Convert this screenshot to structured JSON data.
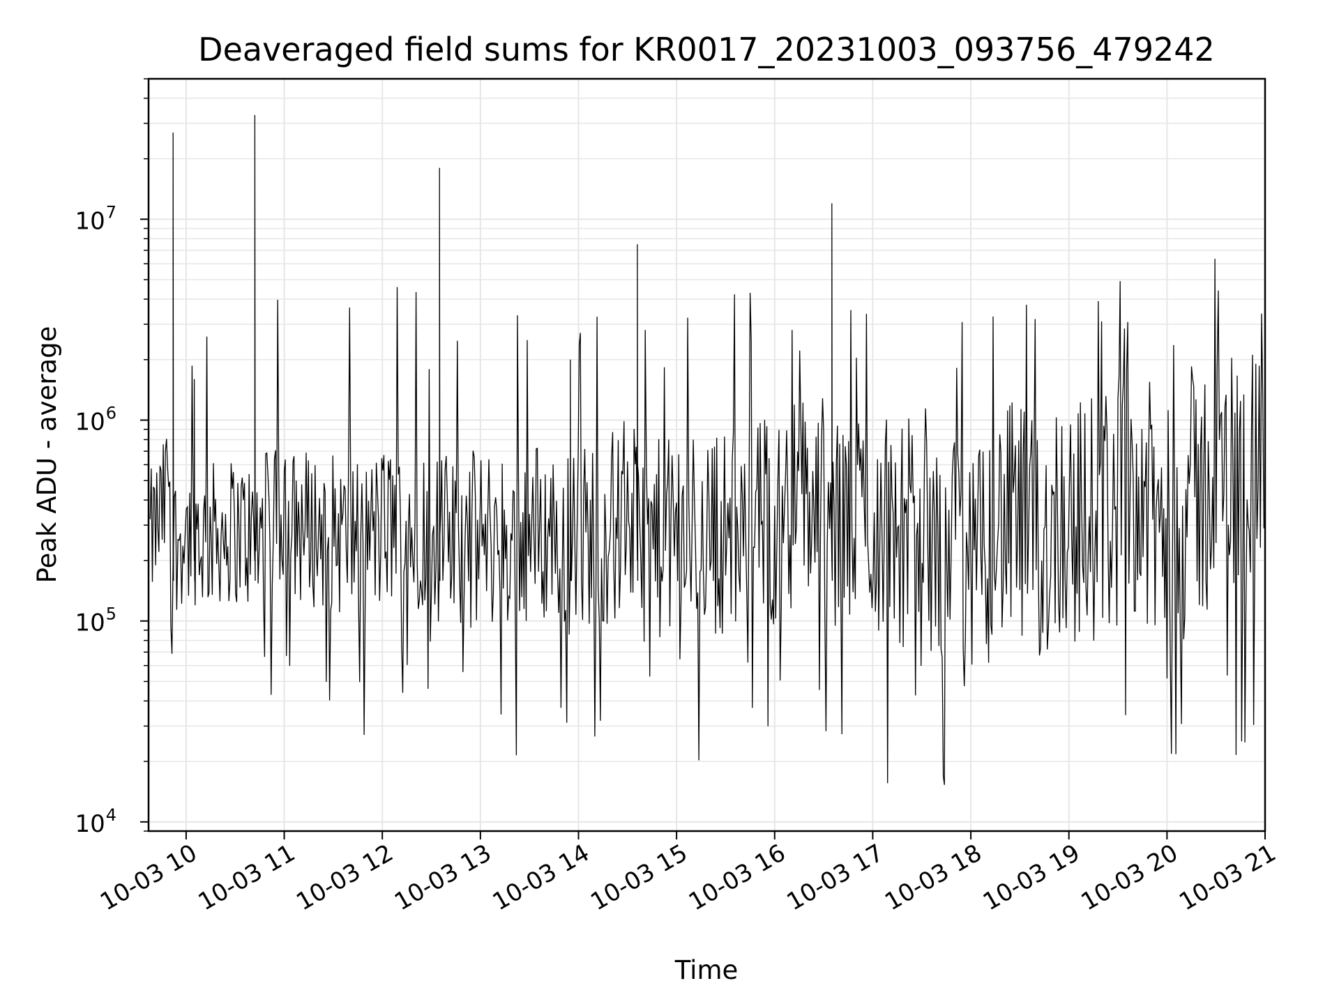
{
  "chart_data": {
    "type": "line",
    "title": "Deaveraged field sums for KR0017_20231003_093756_479242",
    "xlabel": "Time",
    "ylabel": "Peak ADU - average",
    "x_range": [
      "2023-10-03 09:37",
      "2023-10-03 21:00"
    ],
    "y_scale": "log",
    "y_range": [
      9000,
      50000000
    ],
    "grid": true,
    "grid_minor_y": true,
    "line_color": "#000000",
    "x_ticks": [
      {
        "value": "2023-10-03 10:00",
        "label": "10-03 10"
      },
      {
        "value": "2023-10-03 11:00",
        "label": "10-03 11"
      },
      {
        "value": "2023-10-03 12:00",
        "label": "10-03 12"
      },
      {
        "value": "2023-10-03 13:00",
        "label": "10-03 13"
      },
      {
        "value": "2023-10-03 14:00",
        "label": "10-03 14"
      },
      {
        "value": "2023-10-03 15:00",
        "label": "10-03 15"
      },
      {
        "value": "2023-10-03 16:00",
        "label": "10-03 16"
      },
      {
        "value": "2023-10-03 17:00",
        "label": "10-03 17"
      },
      {
        "value": "2023-10-03 18:00",
        "label": "10-03 18"
      },
      {
        "value": "2023-10-03 19:00",
        "label": "10-03 19"
      },
      {
        "value": "2023-10-03 20:00",
        "label": "10-03 20"
      },
      {
        "value": "2023-10-03 21:00",
        "label": "10-03 21"
      }
    ],
    "y_ticks": [
      {
        "value": 10000,
        "base": "10",
        "exp": "4"
      },
      {
        "value": 100000,
        "base": "10",
        "exp": "5"
      },
      {
        "value": 1000000,
        "base": "10",
        "exp": "6"
      },
      {
        "value": 10000000,
        "base": "10",
        "exp": "7"
      }
    ],
    "series": [
      {
        "type": "line",
        "color": "#000000",
        "x": [
          "2023-10-03 09:38",
          "2023-10-03 09:42",
          "2023-10-03 09:46",
          "2023-10-03 09:50",
          "2023-10-03 09:52",
          "2023-10-03 09:55",
          "2023-10-03 09:58",
          "2023-10-03 10:05",
          "2023-10-03 10:06",
          "2023-10-03 10:10",
          "2023-10-03 10:20",
          "2023-10-03 10:35",
          "2023-10-03 10:42",
          "2023-10-03 10:50",
          "2023-10-03 11:00",
          "2023-10-03 11:10",
          "2023-10-03 11:25",
          "2023-10-03 11:40",
          "2023-10-03 11:55",
          "2023-10-03 12:05",
          "2023-10-03 12:20",
          "2023-10-03 12:30",
          "2023-10-03 12:35",
          "2023-10-03 12:50",
          "2023-10-03 13:10",
          "2023-10-03 13:20",
          "2023-10-03 13:30",
          "2023-10-03 13:50",
          "2023-10-03 13:55",
          "2023-10-03 14:10",
          "2023-10-03 14:25",
          "2023-10-03 14:30",
          "2023-10-03 14:36",
          "2023-10-03 14:45",
          "2023-10-03 15:00",
          "2023-10-03 15:15",
          "2023-10-03 15:30",
          "2023-10-03 15:45",
          "2023-10-03 16:00",
          "2023-10-03 16:10",
          "2023-10-03 16:20",
          "2023-10-03 16:30",
          "2023-10-03 16:35",
          "2023-10-03 16:50",
          "2023-10-03 17:05",
          "2023-10-03 17:20",
          "2023-10-03 17:35",
          "2023-10-03 17:50",
          "2023-10-03 18:00",
          "2023-10-03 18:15",
          "2023-10-03 18:30",
          "2023-10-03 18:42",
          "2023-10-03 18:55",
          "2023-10-03 19:05",
          "2023-10-03 19:20",
          "2023-10-03 19:30",
          "2023-10-03 19:40",
          "2023-10-03 19:48",
          "2023-10-03 20:00",
          "2023-10-03 20:15",
          "2023-10-03 20:30",
          "2023-10-03 20:45",
          "2023-10-03 20:55",
          "2023-10-03 21:00"
        ],
        "y": [
          250000,
          300000,
          350000,
          600000,
          27000000,
          250000,
          280000,
          1600000,
          300000,
          250000,
          280000,
          280000,
          33000000,
          300000,
          300000,
          300000,
          280000,
          260000,
          270000,
          300000,
          300000,
          320000,
          18000000,
          250000,
          260000,
          240000,
          280000,
          270000,
          2000000,
          280000,
          300000,
          400000,
          7500000,
          250000,
          260000,
          280000,
          280000,
          300000,
          320000,
          400000,
          400000,
          380000,
          12000000,
          350000,
          300000,
          280000,
          200000,
          250000,
          150000,
          300000,
          300000,
          220000,
          350000,
          300000,
          350000,
          400000,
          500000,
          350000,
          250000,
          400000,
          500000,
          550000,
          600000,
          800000
        ]
      }
    ]
  }
}
